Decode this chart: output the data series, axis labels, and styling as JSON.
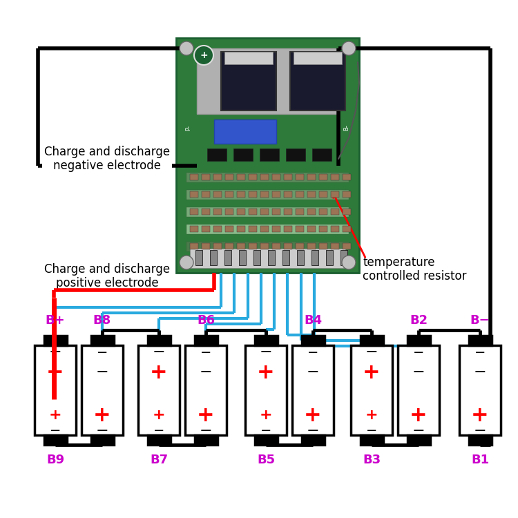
{
  "bg_color": "#ffffff",
  "purple": "#cc00cc",
  "red": "#ff0000",
  "blue": "#29aadf",
  "black": "#000000",
  "green_board": "#2d7a3a",
  "fig_w": 7.5,
  "fig_h": 7.5,
  "label_neg": "Charge and discharge\nnegative electrode",
  "label_pos": "Charge and discharge\npositive electrode",
  "label_temp": "temperature\ncontrolled resistor",
  "label_bplus": "B+",
  "label_bminus": "B−",
  "bat_labels_top": [
    "B8",
    "B6",
    "B4",
    "B2"
  ],
  "bat_labels_bot": [
    "B9",
    "B7",
    "B5",
    "B3",
    "B1"
  ]
}
